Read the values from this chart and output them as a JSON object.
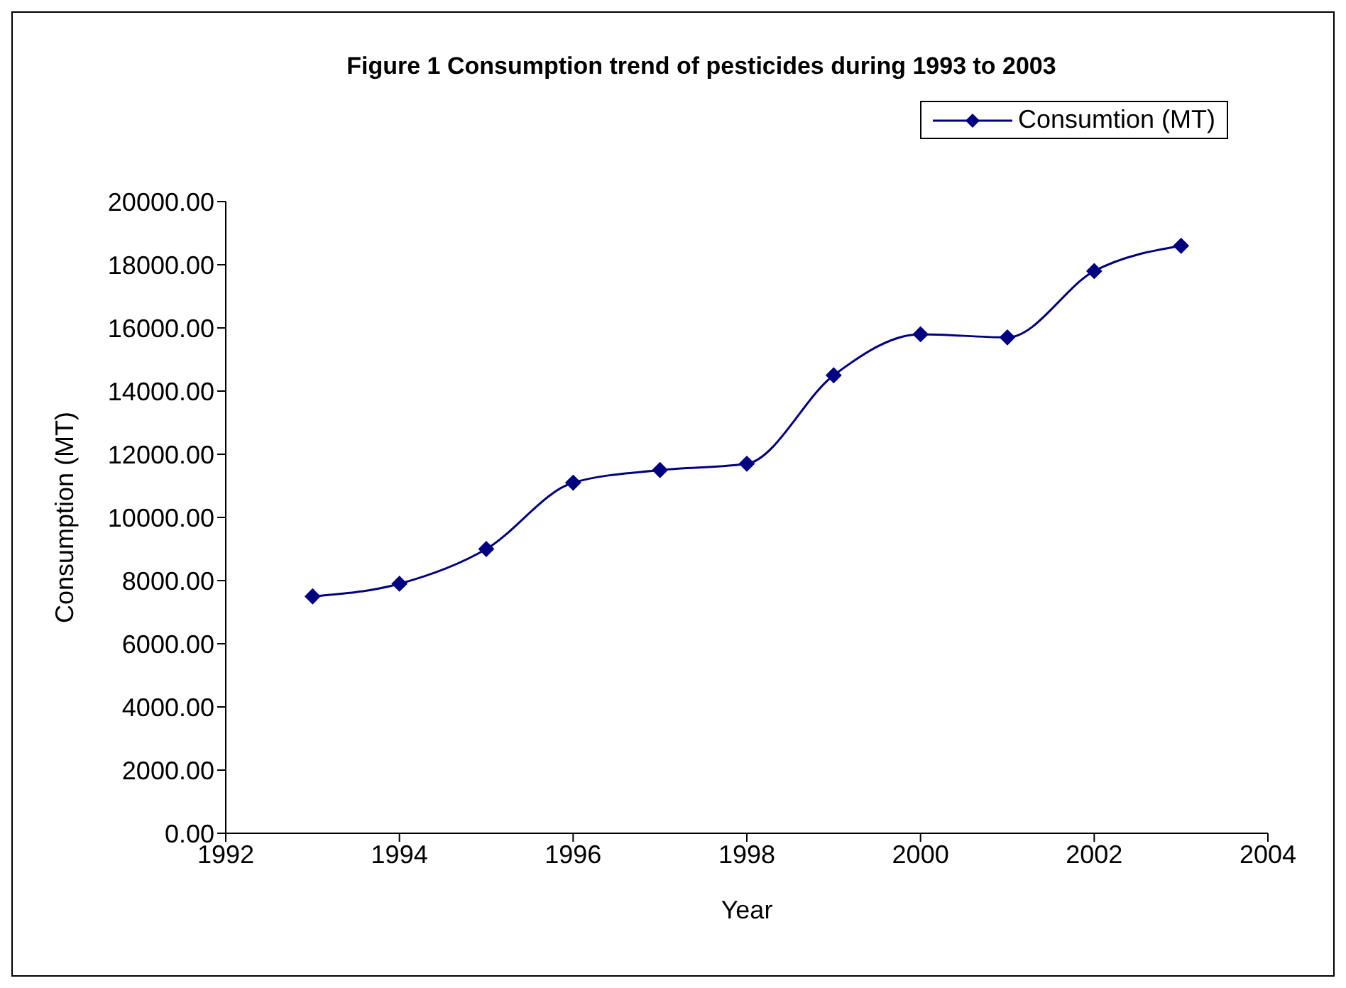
{
  "chart_data": {
    "type": "line",
    "title": "Figure 1 Consumption trend of pesticides during 1993 to 2003",
    "xlabel": "Year",
    "ylabel": "Consumption (MT)",
    "x": [
      1993,
      1994,
      1995,
      1996,
      1997,
      1998,
      1999,
      2000,
      2001,
      2002,
      2003
    ],
    "series": [
      {
        "name": "Consumtion (MT)",
        "color": "#000080",
        "values": [
          7500,
          7900,
          9000,
          11100,
          11500,
          11700,
          14500,
          15800,
          15700,
          17800,
          18600
        ]
      }
    ],
    "xlim": [
      1992,
      2004
    ],
    "xticks": [
      1992,
      1994,
      1996,
      1998,
      2000,
      2002,
      2004
    ],
    "ylim": [
      0,
      20000
    ],
    "yticks": [
      {
        "value": 0,
        "label": "0.00"
      },
      {
        "value": 2000,
        "label": "2000.00"
      },
      {
        "value": 4000,
        "label": "4000.00"
      },
      {
        "value": 6000,
        "label": "6000.00"
      },
      {
        "value": 8000,
        "label": "8000.00"
      },
      {
        "value": 10000,
        "label": "10000.00"
      },
      {
        "value": 12000,
        "label": "12000.00"
      },
      {
        "value": 14000,
        "label": "14000.00"
      },
      {
        "value": 16000,
        "label": "16000.00"
      },
      {
        "value": 18000,
        "label": "18000.00"
      },
      {
        "value": 20000,
        "label": "20000.00"
      }
    ],
    "grid": false,
    "legend": "top right",
    "marker": "diamond",
    "line_style": "solid"
  }
}
